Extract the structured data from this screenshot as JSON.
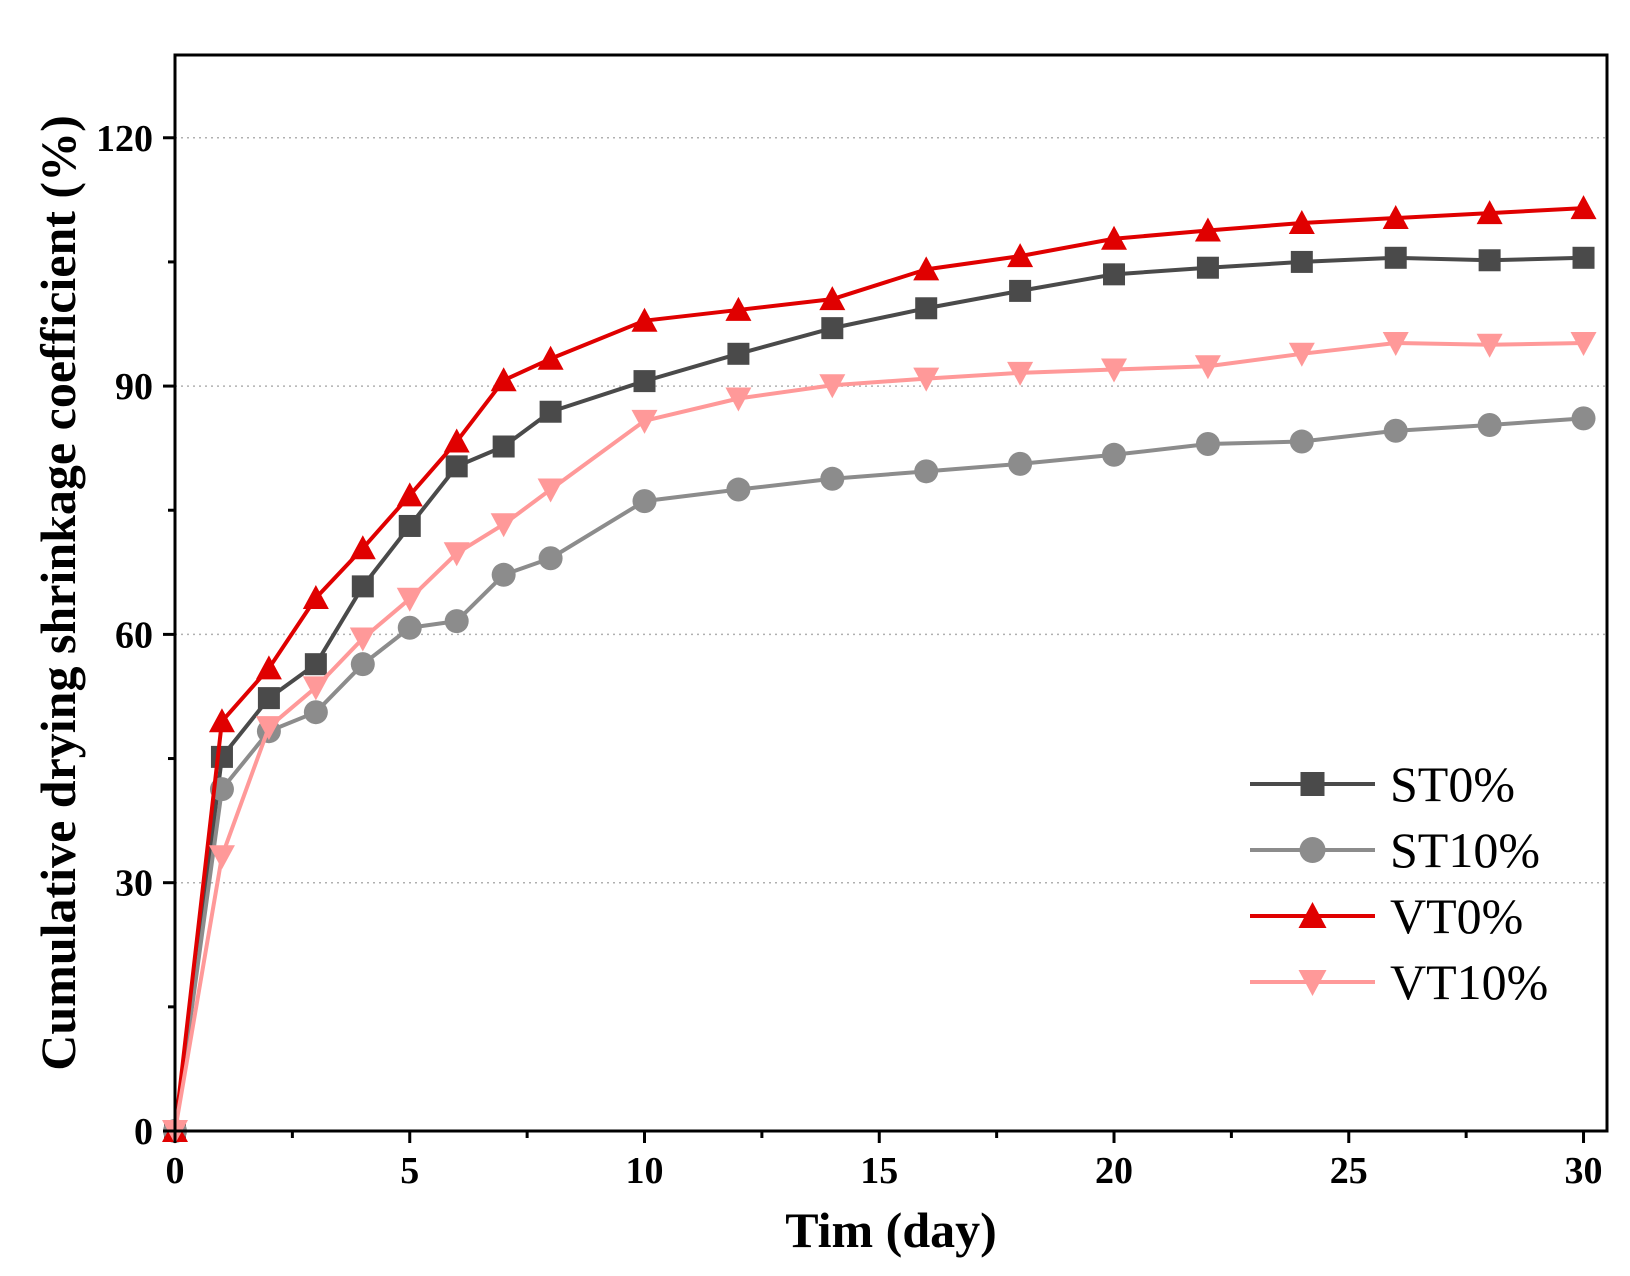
{
  "chart_data": {
    "type": "line",
    "title": "",
    "xlabel": "Tim (day)",
    "ylabel": "Cumulative drying shrinkage coefficient (%)",
    "xlim": [
      0,
      30.5
    ],
    "ylim": [
      0,
      130
    ],
    "xticks": [
      0,
      5,
      10,
      15,
      20,
      25,
      30
    ],
    "xticks_minor": [
      2.5,
      7.5,
      12.5,
      17.5,
      22.5,
      27.5
    ],
    "yticks": [
      0,
      30,
      60,
      90,
      120
    ],
    "yticks_minor": [
      15,
      45,
      75,
      105
    ],
    "grid": "horizontal dotted at major y ticks",
    "legend_position": "lower-right",
    "x": [
      0,
      1,
      2,
      3,
      4,
      5,
      6,
      7,
      8,
      10,
      12,
      14,
      16,
      18,
      20,
      22,
      24,
      26,
      28,
      30
    ],
    "series": [
      {
        "name": "ST0%",
        "marker": "square",
        "color": "#4a4a4a",
        "values": [
          0,
          45.2,
          52.3,
          56.4,
          65.8,
          73.1,
          80.3,
          82.7,
          86.9,
          90.6,
          93.9,
          97.0,
          99.4,
          101.5,
          103.5,
          104.3,
          105.0,
          105.5,
          105.2,
          105.5
        ]
      },
      {
        "name": "ST10%",
        "marker": "circle",
        "color": "#8c8c8c",
        "values": [
          0,
          41.3,
          48.3,
          50.6,
          56.4,
          60.8,
          61.6,
          67.2,
          69.2,
          76.1,
          77.5,
          78.8,
          79.7,
          80.6,
          81.7,
          83.0,
          83.3,
          84.6,
          85.3,
          86.1
        ]
      },
      {
        "name": "VT0%",
        "marker": "triangle-up",
        "color": "#e00000",
        "values": [
          0,
          49.5,
          55.9,
          64.4,
          70.4,
          76.8,
          83.3,
          90.7,
          93.3,
          97.9,
          99.2,
          100.5,
          104.1,
          105.7,
          107.8,
          108.8,
          109.7,
          110.3,
          110.9,
          111.5
        ]
      },
      {
        "name": "VT10%",
        "marker": "triangle-down",
        "color": "#ff9999",
        "values": [
          0,
          33.2,
          48.8,
          53.6,
          59.5,
          64.3,
          69.8,
          73.3,
          77.5,
          85.8,
          88.5,
          90.1,
          90.9,
          91.6,
          92.0,
          92.4,
          93.9,
          95.2,
          95.0,
          95.2
        ]
      }
    ]
  }
}
